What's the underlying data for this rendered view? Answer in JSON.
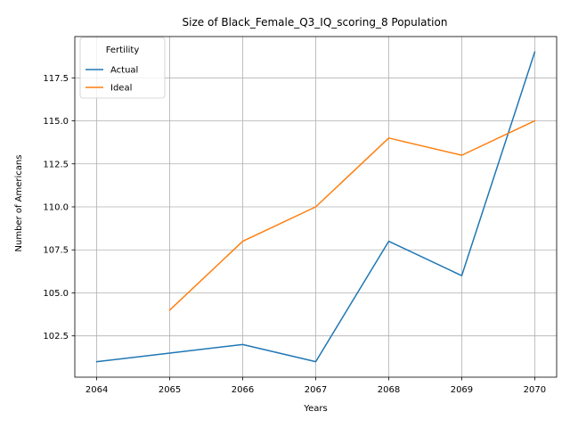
{
  "chart_data": {
    "type": "line",
    "title": "Size of Black_Female_Q3_IQ_scoring_8 Population",
    "xlabel": "Years",
    "ylabel": "Number of Americans",
    "x_ticks": [
      "2064",
      "2065",
      "2066",
      "2067",
      "2068",
      "2069",
      "2070"
    ],
    "y_ticks": [
      "102.5",
      "105.0",
      "107.5",
      "110.0",
      "112.5",
      "115.0",
      "117.5"
    ],
    "xlim": [
      2063.7,
      2070.3
    ],
    "ylim": [
      100.1,
      119.9
    ],
    "grid": true,
    "legend": {
      "title": "Fertility",
      "placement": "top-left"
    },
    "series": [
      {
        "name": "Actual",
        "color": "#1f77b4",
        "points": [
          {
            "x": 2064,
            "y": 101.0
          },
          {
            "x": 2065,
            "y": 101.5
          },
          {
            "x": 2066,
            "y": 102.0
          },
          {
            "x": 2067,
            "y": 101.0
          },
          {
            "x": 2068,
            "y": 108.0
          },
          {
            "x": 2069,
            "y": 106.0
          },
          {
            "x": 2070,
            "y": 119.0
          }
        ]
      },
      {
        "name": "Ideal",
        "color": "#ff7f0e",
        "points": [
          {
            "x": 2065,
            "y": 104.0
          },
          {
            "x": 2066,
            "y": 108.0
          },
          {
            "x": 2067,
            "y": 110.0
          },
          {
            "x": 2068,
            "y": 114.0
          },
          {
            "x": 2069,
            "y": 113.0
          },
          {
            "x": 2070,
            "y": 115.0
          }
        ]
      }
    ]
  }
}
